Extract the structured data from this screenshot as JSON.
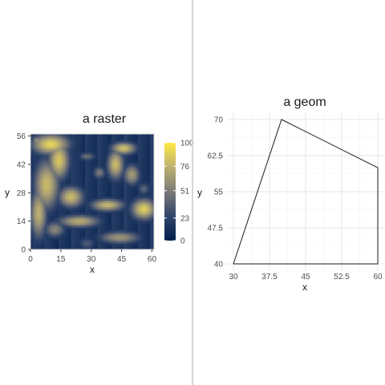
{
  "panels": [
    {
      "chart_data": {
        "type": "heatmap",
        "title": "a raster",
        "xlabel": "x",
        "ylabel": "y",
        "xlim": [
          0,
          61
        ],
        "ylim": [
          0,
          57
        ],
        "x_ticks": [
          0,
          15,
          30,
          45,
          60
        ],
        "y_ticks": [
          0,
          14,
          28,
          42,
          56
        ],
        "colorbar": {
          "range": [
            0,
            100
          ],
          "ticks": [
            0,
            23,
            51,
            76,
            100
          ]
        },
        "grid": {
          "ncol": 61,
          "nrow": 57
        },
        "blobs": [
          {
            "x": 10,
            "y": 52,
            "rx": 9,
            "ry": 5,
            "v": 90
          },
          {
            "x": 14,
            "y": 44,
            "rx": 5,
            "ry": 9,
            "v": 85
          },
          {
            "x": 8,
            "y": 32,
            "rx": 6,
            "ry": 12,
            "v": 80
          },
          {
            "x": 4,
            "y": 18,
            "rx": 4,
            "ry": 12,
            "v": 75
          },
          {
            "x": 20,
            "y": 26,
            "rx": 6,
            "ry": 5,
            "v": 80
          },
          {
            "x": 24,
            "y": 14,
            "rx": 10,
            "ry": 3,
            "v": 72
          },
          {
            "x": 12,
            "y": 10,
            "rx": 5,
            "ry": 4,
            "v": 55
          },
          {
            "x": 46,
            "y": 50,
            "rx": 6,
            "ry": 3,
            "v": 82
          },
          {
            "x": 42,
            "y": 42,
            "rx": 4,
            "ry": 7,
            "v": 80
          },
          {
            "x": 50,
            "y": 37,
            "rx": 4,
            "ry": 5,
            "v": 65
          },
          {
            "x": 56,
            "y": 20,
            "rx": 6,
            "ry": 5,
            "v": 88
          },
          {
            "x": 38,
            "y": 22,
            "rx": 8,
            "ry": 3,
            "v": 78
          },
          {
            "x": 44,
            "y": 6,
            "rx": 10,
            "ry": 3,
            "v": 62
          },
          {
            "x": 34,
            "y": 38,
            "rx": 3,
            "ry": 3,
            "v": 50
          },
          {
            "x": 28,
            "y": 46,
            "rx": 4,
            "ry": 2,
            "v": 45
          },
          {
            "x": 3,
            "y": 54,
            "rx": 2,
            "ry": 2,
            "v": 60
          },
          {
            "x": 28,
            "y": 3,
            "rx": 4,
            "ry": 3,
            "v": 35
          },
          {
            "x": 56,
            "y": 30,
            "rx": 3,
            "ry": 3,
            "v": 40
          }
        ]
      }
    },
    {
      "chart_data": {
        "type": "line",
        "title": "a geom",
        "xlabel": "x",
        "ylabel": "y",
        "xlim": [
          30,
          60
        ],
        "ylim": [
          40,
          70
        ],
        "x_ticks": [
          30,
          37.5,
          45,
          52.5,
          60
        ],
        "y_ticks": [
          40,
          47.5,
          55,
          62.5,
          70
        ],
        "x_tick_labels": [
          "30",
          "37.5",
          "45",
          "52.5",
          "60"
        ],
        "y_tick_labels": [
          "40",
          "47.5",
          "55",
          "62.5",
          "70"
        ],
        "polygon": [
          [
            30,
            40
          ],
          [
            40,
            70
          ],
          [
            60,
            60
          ],
          [
            60,
            40
          ],
          [
            30,
            40
          ]
        ],
        "grid": true
      }
    }
  ]
}
